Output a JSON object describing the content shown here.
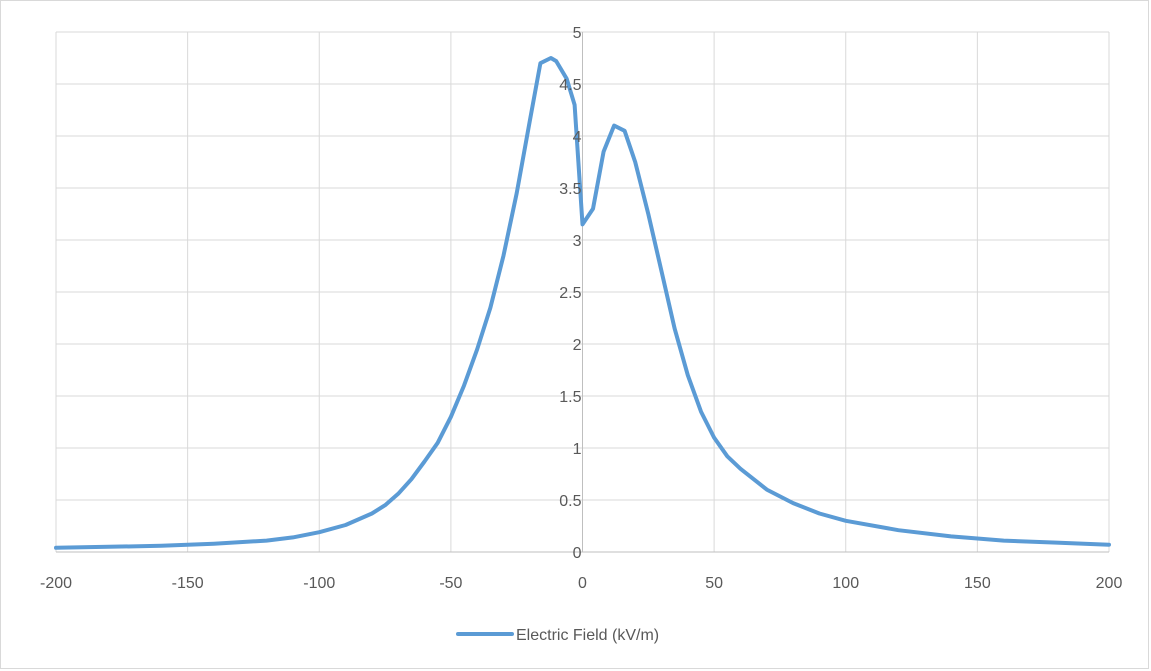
{
  "chart_data": {
    "type": "line",
    "title": "",
    "xlabel": "",
    "ylabel": "",
    "xlim": [
      -200,
      200
    ],
    "ylim": [
      0,
      5
    ],
    "x_ticks": [
      -200,
      -150,
      -100,
      -50,
      0,
      50,
      100,
      150,
      200
    ],
    "y_ticks": [
      0,
      0.5,
      1,
      1.5,
      2,
      2.5,
      3,
      3.5,
      4,
      4.5,
      5
    ],
    "grid": true,
    "legend_position": "bottom",
    "series_color": "#5b9bd5",
    "series": [
      {
        "name": "Electric Field (kV/m)",
        "x": [
          -200,
          -180,
          -160,
          -140,
          -120,
          -110,
          -100,
          -90,
          -80,
          -75,
          -70,
          -65,
          -60,
          -55,
          -50,
          -45,
          -40,
          -35,
          -30,
          -25,
          -20,
          -16,
          -12,
          -10,
          -6,
          -3,
          0,
          4,
          8,
          12,
          16,
          20,
          25,
          30,
          35,
          40,
          45,
          50,
          55,
          60,
          70,
          80,
          90,
          100,
          120,
          140,
          160,
          180,
          200
        ],
        "y": [
          0.04,
          0.05,
          0.06,
          0.08,
          0.11,
          0.14,
          0.19,
          0.26,
          0.37,
          0.45,
          0.56,
          0.7,
          0.87,
          1.05,
          1.3,
          1.6,
          1.95,
          2.35,
          2.85,
          3.45,
          4.15,
          4.7,
          4.75,
          4.72,
          4.55,
          4.3,
          3.15,
          3.3,
          3.85,
          4.1,
          4.05,
          3.75,
          3.25,
          2.7,
          2.15,
          1.7,
          1.35,
          1.1,
          0.92,
          0.8,
          0.6,
          0.47,
          0.37,
          0.3,
          0.21,
          0.15,
          0.11,
          0.09,
          0.07
        ]
      }
    ]
  }
}
